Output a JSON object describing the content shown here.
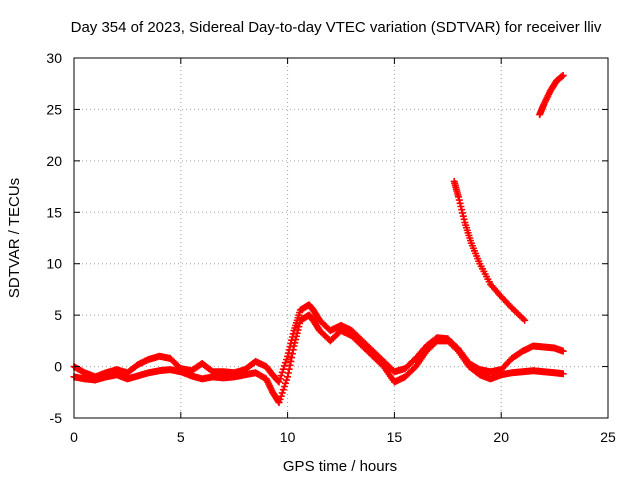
{
  "chart_data": {
    "type": "scatter",
    "title": "Day 354 of 2023, Sidereal Day-to-day VTEC variation (SDTVAR) for receiver lliv",
    "xlabel": "GPS time / hours",
    "ylabel": "SDTVAR / TECUs",
    "xlim": [
      0,
      25
    ],
    "ylim": [
      -5,
      30
    ],
    "x_ticks": [
      0,
      5,
      10,
      15,
      20,
      25
    ],
    "y_ticks": [
      -5,
      0,
      5,
      10,
      15,
      20,
      25,
      30
    ],
    "grid": true,
    "marker": "+",
    "color": "#ff0000",
    "series": [
      {
        "x": [
          0.0,
          0.5,
          1.0,
          1.5,
          2.0,
          2.5,
          3.0,
          3.5,
          4.0,
          4.5,
          5.0,
          5.5,
          6.0,
          6.5,
          7.0,
          7.5,
          8.0,
          8.5,
          9.0,
          9.3,
          9.6,
          10.0,
          10.3,
          10.6,
          11.0,
          11.2,
          11.5,
          12.0,
          12.5,
          13.0,
          13.5,
          14.0,
          14.5,
          15.0,
          15.5,
          16.0,
          16.5,
          17.0,
          17.5,
          18.0,
          18.5,
          19.0,
          19.5,
          20.0,
          20.5,
          21.0,
          21.5,
          22.0,
          22.5,
          22.9
        ],
        "y": [
          -1.0,
          -1.2,
          -1.3,
          -1.0,
          -0.8,
          -1.2,
          -0.9,
          -0.6,
          -0.4,
          -0.3,
          -0.5,
          -0.9,
          -1.2,
          -1.0,
          -1.1,
          -1.0,
          -0.8,
          -0.6,
          -1.2,
          -2.5,
          -3.5,
          -1.0,
          2.0,
          4.5,
          5.0,
          4.5,
          3.5,
          2.5,
          3.5,
          3.0,
          2.0,
          1.0,
          0.0,
          -1.5,
          -1.0,
          0.0,
          1.5,
          2.5,
          2.5,
          1.5,
          0.0,
          -0.8,
          -1.2,
          -0.8,
          -0.6,
          -0.5,
          -0.4,
          -0.5,
          -0.6,
          -0.7
        ]
      },
      {
        "x": [
          0.0,
          0.5,
          1.0,
          1.5,
          2.0,
          2.5,
          3.0,
          3.5,
          4.0,
          4.5,
          5.0,
          5.5,
          6.0,
          6.5,
          7.0,
          7.5,
          8.0,
          8.5,
          9.0,
          9.3,
          9.6,
          10.0,
          10.3,
          10.6,
          11.0,
          11.2,
          11.5,
          12.0,
          12.5,
          13.0,
          13.5,
          14.0,
          14.5,
          15.0,
          15.5,
          16.0,
          16.5,
          17.0,
          17.5,
          18.0,
          18.5,
          19.0,
          19.5,
          20.0,
          20.5,
          21.0,
          21.5,
          22.0,
          22.5,
          22.9
        ],
        "y": [
          0.0,
          -0.6,
          -1.0,
          -0.6,
          -0.3,
          -0.6,
          0.2,
          0.7,
          1.0,
          0.8,
          -0.2,
          -0.4,
          0.3,
          -0.5,
          -0.5,
          -0.6,
          -0.3,
          0.5,
          0.0,
          -0.8,
          -1.5,
          1.0,
          3.5,
          5.5,
          6.0,
          5.5,
          4.5,
          3.5,
          4.0,
          3.5,
          2.5,
          1.5,
          0.5,
          -0.5,
          -0.2,
          0.8,
          2.0,
          2.8,
          2.7,
          1.7,
          0.3,
          -0.3,
          -0.5,
          -0.3,
          0.8,
          1.5,
          2.0,
          1.9,
          1.8,
          1.5
        ]
      },
      {
        "x": [
          17.8,
          18.0,
          18.3,
          18.6,
          19.0,
          19.5,
          20.0,
          20.5,
          21.1
        ],
        "y": [
          18.0,
          16.5,
          14.0,
          12.0,
          10.0,
          8.0,
          6.8,
          5.7,
          4.5
        ]
      },
      {
        "x": [
          21.8,
          22.0,
          22.3,
          22.6,
          22.9
        ],
        "y": [
          24.5,
          25.5,
          26.8,
          27.8,
          28.3
        ]
      }
    ]
  }
}
